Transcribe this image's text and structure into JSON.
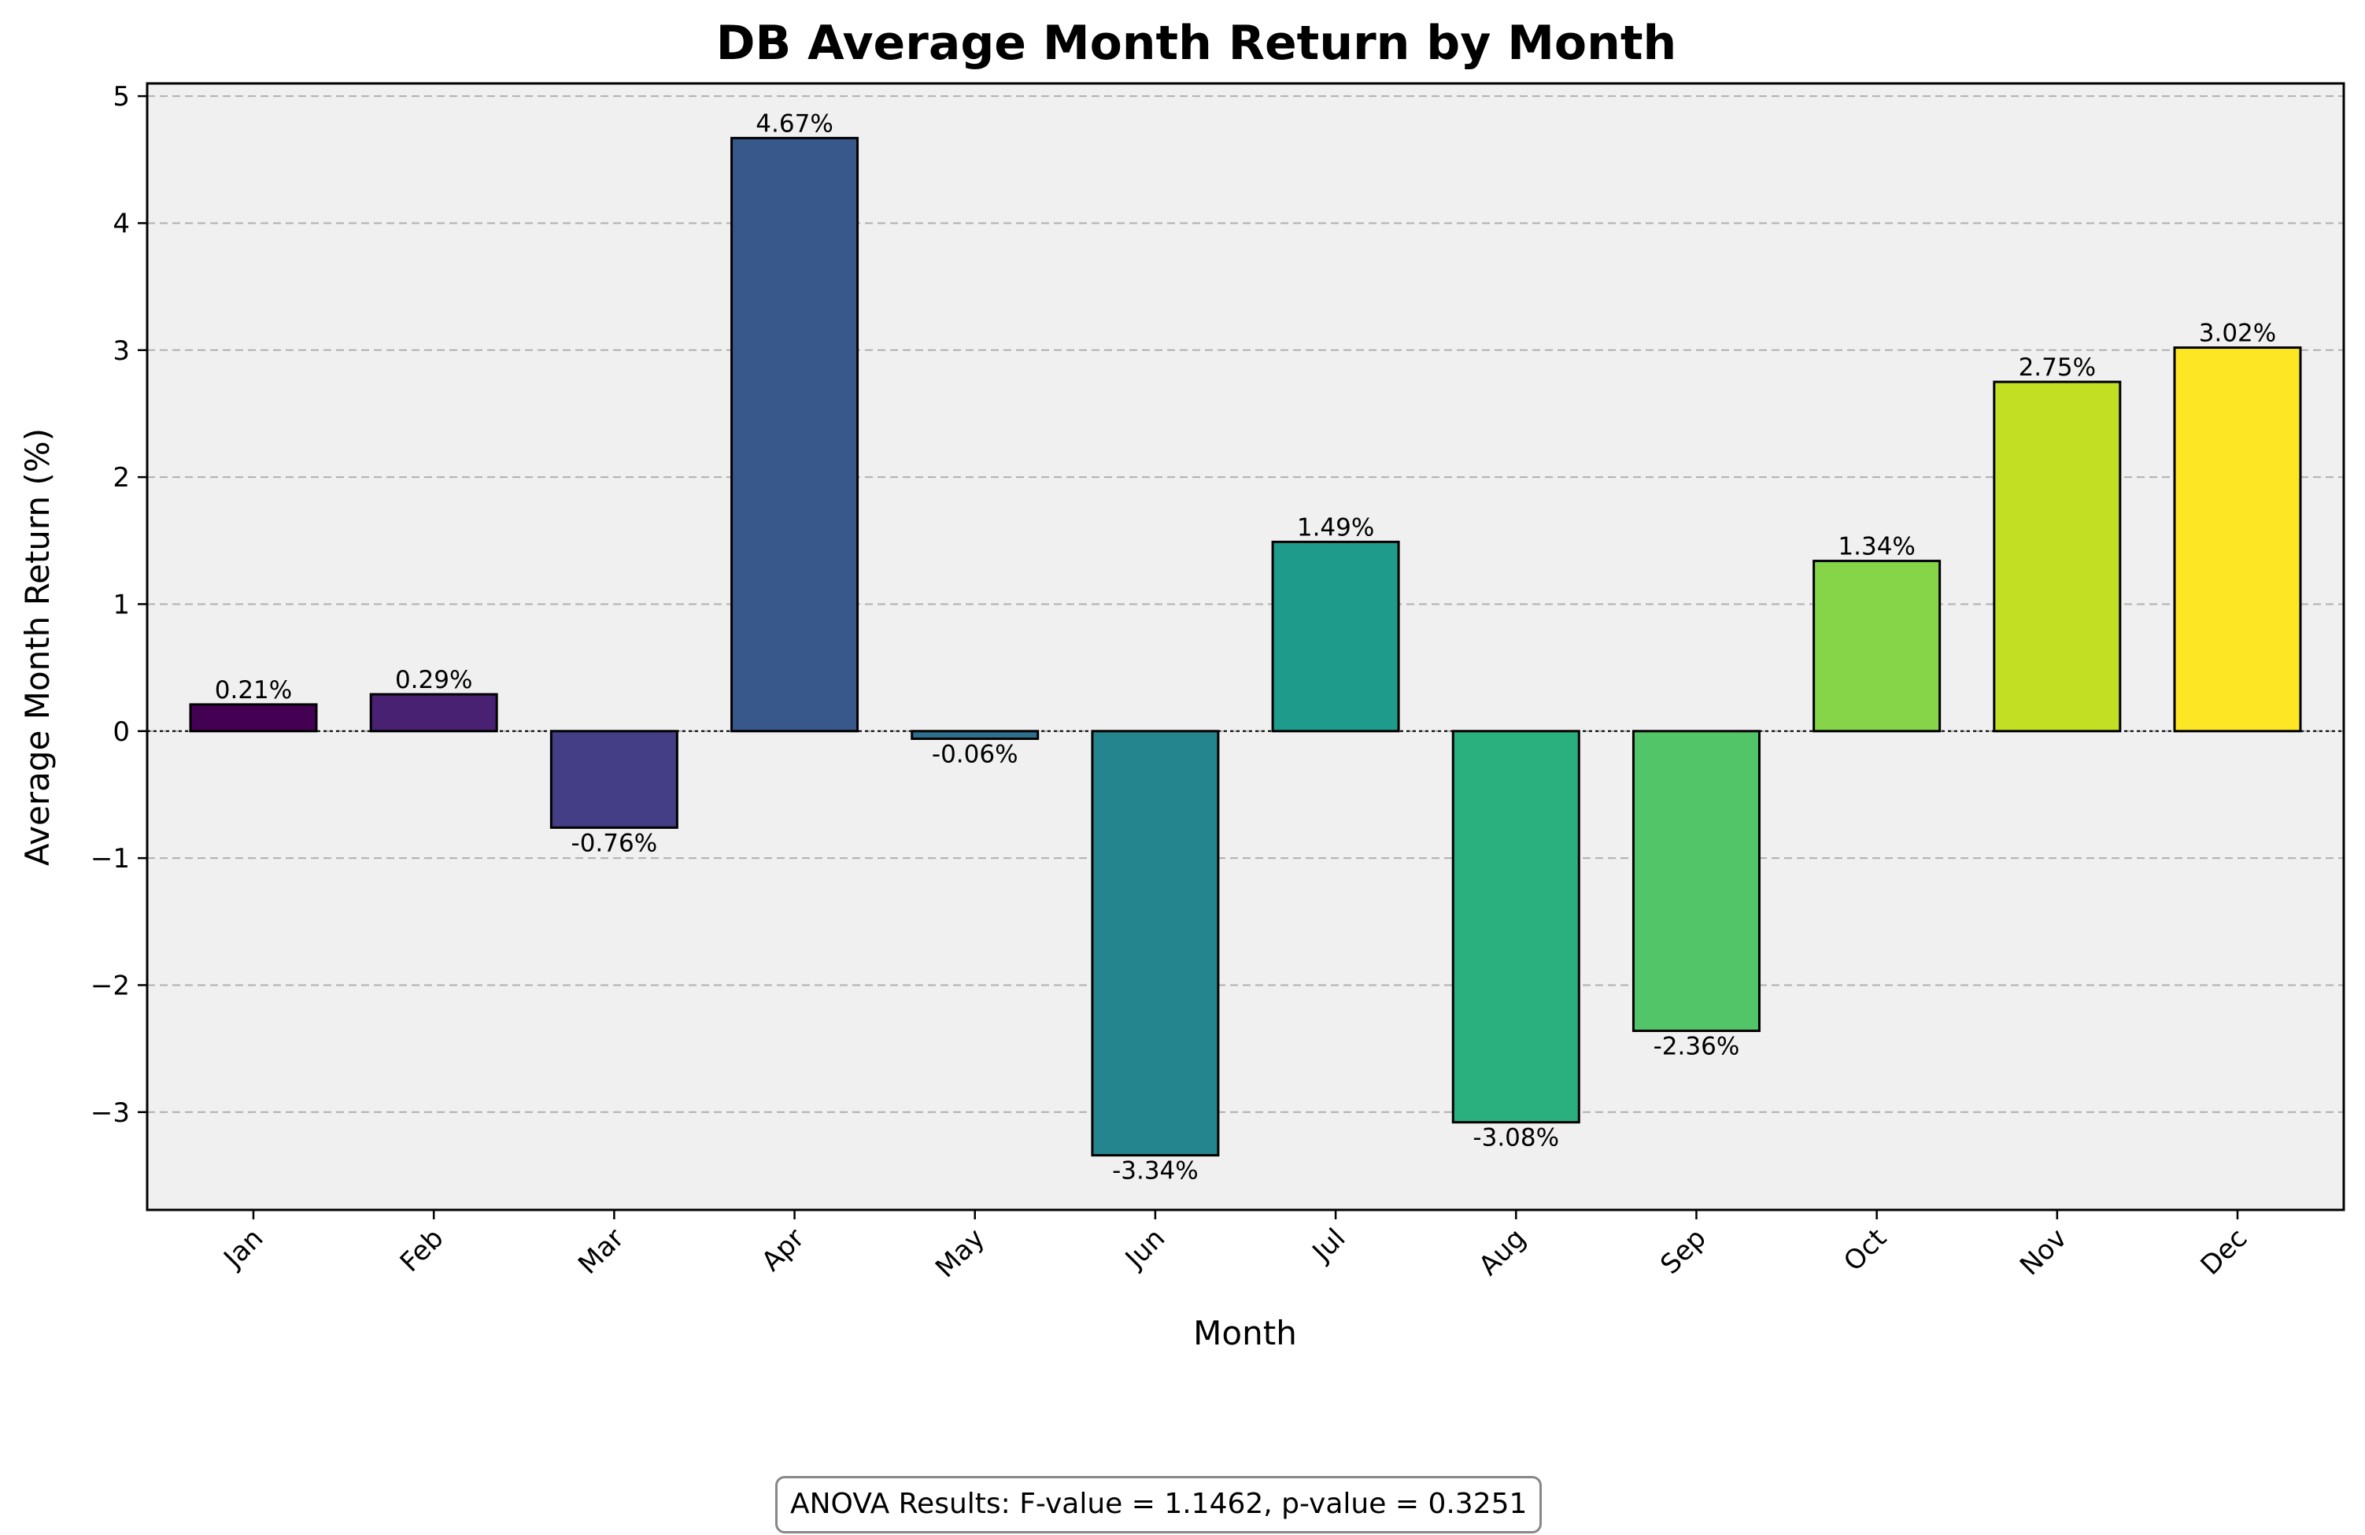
{
  "chart_data": {
    "type": "bar",
    "title": "DB Average Month Return by Month",
    "xlabel": "Month",
    "ylabel": "Average Month Return (%)",
    "categories": [
      "Jan",
      "Feb",
      "Mar",
      "Apr",
      "May",
      "Jun",
      "Jul",
      "Aug",
      "Sep",
      "Oct",
      "Nov",
      "Dec"
    ],
    "values": [
      0.21,
      0.29,
      -0.76,
      4.67,
      -0.06,
      -3.34,
      1.49,
      -3.08,
      -2.36,
      1.34,
      2.75,
      3.02
    ],
    "data_labels": [
      "0.21%",
      "0.29%",
      "-0.76%",
      "4.67%",
      "-0.06%",
      "-3.34%",
      "1.49%",
      "-3.08%",
      "-2.36%",
      "1.34%",
      "2.75%",
      "3.02%"
    ],
    "ylim": [
      -3.77,
      5.1
    ],
    "yticks": [
      -3,
      -2,
      -1,
      0,
      1,
      2,
      3,
      4,
      5
    ],
    "ytick_labels": [
      "−3",
      "−2",
      "−1",
      "0",
      "1",
      "2",
      "3",
      "4",
      "5"
    ],
    "grid": "horizontal dashed",
    "colormap": "viridis",
    "bar_colors": [
      "#440154",
      "#482173",
      "#433e85",
      "#38588c",
      "#2d708e",
      "#25858e",
      "#1e9b8a",
      "#2ab07f",
      "#52c569",
      "#86d549",
      "#c2df23",
      "#fde725"
    ],
    "plot_background": "#f0f0f0",
    "annotation": "ANOVA Results: F-value = 1.1462, p-value = 0.3251"
  }
}
